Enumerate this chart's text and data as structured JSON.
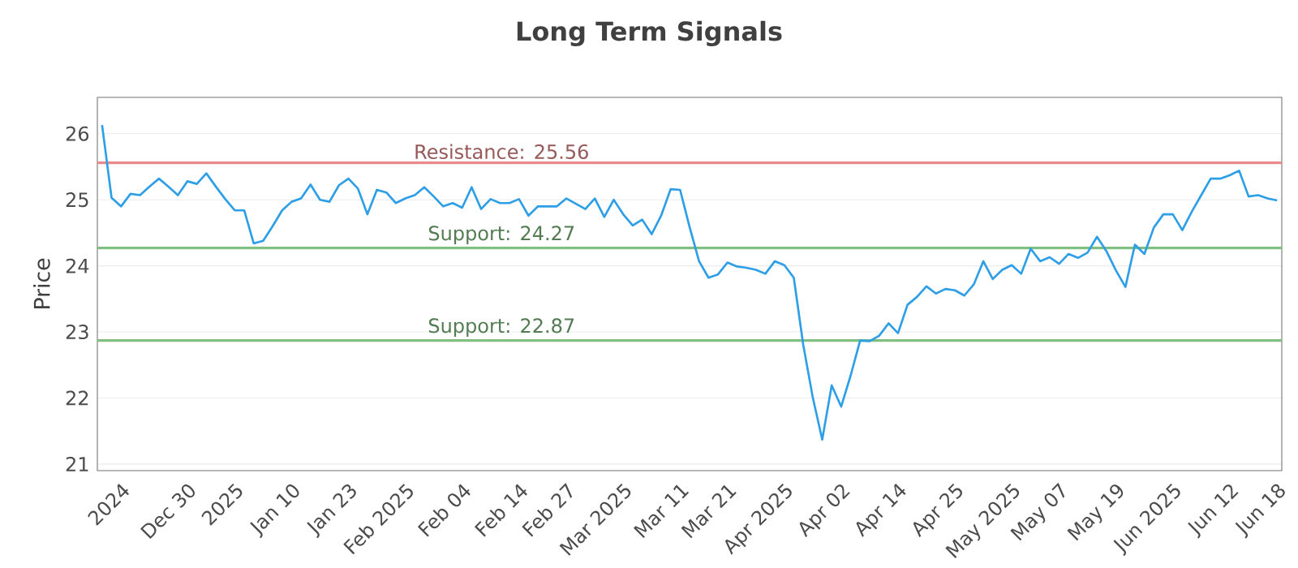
{
  "chart_data": {
    "type": "line",
    "title": "Long Term Signals",
    "ylabel": "Price",
    "categories": [
      null,
      null,
      "2024",
      null,
      null,
      null,
      null,
      null,
      null,
      "Dec 30",
      null,
      null,
      null,
      null,
      "2025",
      null,
      null,
      null,
      null,
      null,
      "Jan 10",
      null,
      null,
      null,
      null,
      null,
      "Jan 23",
      null,
      null,
      null,
      null,
      null,
      "Feb 2025",
      null,
      null,
      null,
      null,
      null,
      "Feb 04",
      null,
      null,
      null,
      null,
      null,
      "Feb 14",
      null,
      null,
      null,
      null,
      "Feb 27",
      null,
      null,
      null,
      null,
      null,
      "Mar 2025",
      null,
      null,
      null,
      null,
      null,
      "Mar 11",
      null,
      null,
      null,
      null,
      "Mar 21",
      null,
      null,
      null,
      null,
      null,
      "Apr 2025",
      null,
      null,
      null,
      null,
      null,
      "Apr 02",
      null,
      null,
      null,
      null,
      null,
      "Apr 14",
      null,
      null,
      null,
      null,
      null,
      "Apr 25",
      null,
      null,
      null,
      null,
      null,
      "May 2025",
      null,
      null,
      null,
      null,
      "May 07",
      null,
      null,
      null,
      null,
      null,
      "May 19",
      null,
      null,
      null,
      null,
      null,
      "Jun 2025",
      null,
      null,
      null,
      null,
      null,
      "Jun 12",
      null,
      null,
      null,
      null,
      "Jun 18"
    ],
    "series": [
      {
        "color": "#2e9fe6",
        "values": [
          26.13,
          25.03,
          24.9,
          25.09,
          25.07,
          25.2,
          25.32,
          25.2,
          25.07,
          25.28,
          25.24,
          25.4,
          25.2,
          25.01,
          24.84,
          24.84,
          24.34,
          24.38,
          24.6,
          24.84,
          24.97,
          25.02,
          25.23,
          25.0,
          24.97,
          25.22,
          25.32,
          25.17,
          24.78,
          25.15,
          25.11,
          24.95,
          25.02,
          25.07,
          25.19,
          25.05,
          24.9,
          24.95,
          24.88,
          25.19,
          24.86,
          25.01,
          24.95,
          24.95,
          25.01,
          24.76,
          24.9,
          24.9,
          24.9,
          25.02,
          24.94,
          24.86,
          25.02,
          24.74,
          25.0,
          24.78,
          24.61,
          24.7,
          24.48,
          24.76,
          25.16,
          25.15,
          24.59,
          24.07,
          23.82,
          23.87,
          24.05,
          23.99,
          23.97,
          23.94,
          23.88,
          24.07,
          24.01,
          23.82,
          22.8,
          22.01,
          21.37,
          22.19,
          21.87,
          22.34,
          22.87,
          22.86,
          22.94,
          23.13,
          22.98,
          23.41,
          23.53,
          23.69,
          23.58,
          23.65,
          23.63,
          23.55,
          23.72,
          24.07,
          23.8,
          23.94,
          24.01,
          23.88,
          24.26,
          24.07,
          24.13,
          24.03,
          24.18,
          24.12,
          24.2,
          24.44,
          24.22,
          23.93,
          23.68,
          24.32,
          24.18,
          24.58,
          24.78,
          24.78,
          24.54,
          24.82,
          25.07,
          25.32,
          25.32,
          25.37,
          25.44,
          25.05,
          25.07,
          25.02,
          24.99
        ]
      }
    ],
    "ylim": [
      20.9,
      26.55
    ],
    "yticks": [
      21,
      22,
      23,
      24,
      25,
      26
    ],
    "ref_lines": [
      {
        "axis": "y",
        "value": 25.56,
        "label": "Resistance: 25.56",
        "color": "#e88a8a"
      },
      {
        "axis": "y",
        "value": 24.27,
        "label": "Support: 24.27",
        "color": "#80bf80"
      },
      {
        "axis": "y",
        "value": 22.87,
        "label": "Support: 22.87",
        "color": "#80bf80"
      }
    ],
    "grid": "y",
    "marker": "none",
    "line_style": "solid"
  }
}
